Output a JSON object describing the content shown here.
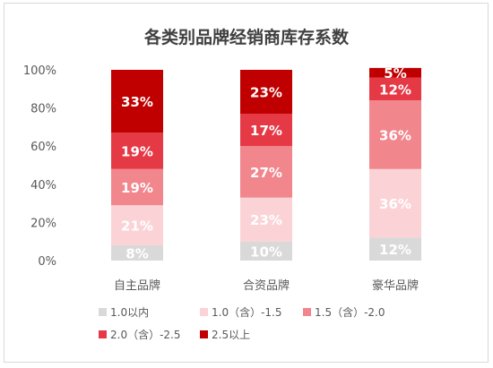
{
  "chart_data": {
    "type": "bar",
    "stacked": true,
    "title": "各类别品牌经销商库存系数",
    "categories": [
      "自主品牌",
      "合资品牌",
      "豪华品牌"
    ],
    "yticks": [
      "0%",
      "20%",
      "40%",
      "60%",
      "80%",
      "100%"
    ],
    "ylim": [
      0,
      100
    ],
    "grid": false,
    "legend_position": "bottom",
    "series": [
      {
        "name": "1.0以内",
        "color": "#d9d9d9",
        "values": [
          8,
          10,
          12
        ],
        "labels": [
          "8%",
          "10%",
          "12%"
        ]
      },
      {
        "name": "1.0（含）-1.5",
        "color": "#fbd3d6",
        "values": [
          21,
          23,
          36
        ],
        "labels": [
          "21%",
          "23%",
          "36%"
        ]
      },
      {
        "name": "1.5（含）-2.0",
        "color": "#f1868d",
        "values": [
          19,
          27,
          36
        ],
        "labels": [
          "19%",
          "27%",
          "36%"
        ]
      },
      {
        "name": "2.0（含）-2.5",
        "color": "#e63946",
        "values": [
          19,
          17,
          12
        ],
        "labels": [
          "19%",
          "17%",
          "12%"
        ]
      },
      {
        "name": "2.5以上",
        "color": "#c00000",
        "values": [
          33,
          23,
          5
        ],
        "labels": [
          "33%",
          "23%",
          "5%"
        ]
      }
    ]
  }
}
